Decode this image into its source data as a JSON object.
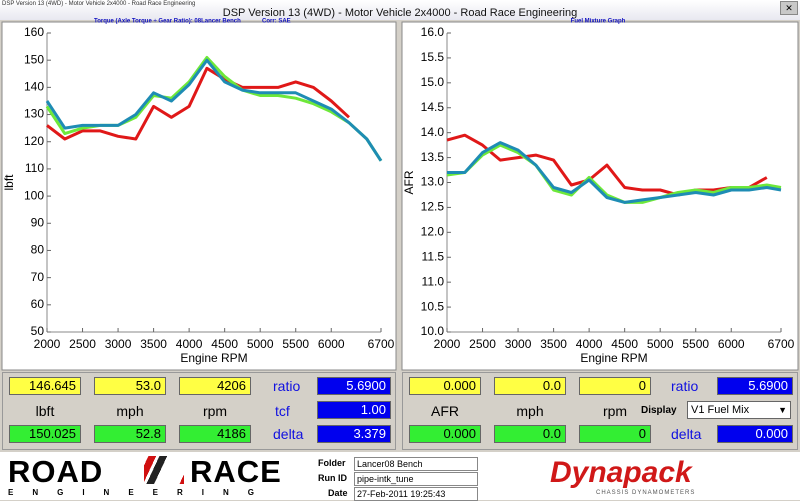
{
  "window": {
    "title_small": "DSP Version 13 (4WD) - Motor Vehicle 2x4000 - Road Race Engineering",
    "title": "DSP Version 13 (4WD) - Motor Vehicle 2x4000 - Road Race Engineering"
  },
  "chart_data": [
    {
      "type": "line",
      "title": "Torque (Axle Torque ÷ Gear Ratio): 08Lancer Bench",
      "annotation": "Corr: SAE",
      "xlabel": "Engine RPM",
      "ylabel": "lbft",
      "x": [
        2000,
        2250,
        2500,
        2750,
        3000,
        3250,
        3500,
        3750,
        4000,
        4250,
        4500,
        4750,
        5000,
        5250,
        5500,
        5750,
        6000,
        6250,
        6500,
        6700
      ],
      "series": [
        {
          "color": "#e01818",
          "values": [
            126,
            121,
            124,
            124,
            122,
            121,
            133,
            129,
            133,
            147,
            143,
            140,
            140,
            140,
            142,
            140,
            135,
            129,
            null,
            null
          ]
        },
        {
          "color": "#6ee83a",
          "values": [
            133,
            123,
            125,
            126,
            126,
            129,
            137,
            136,
            142,
            151,
            144,
            139,
            137,
            137,
            136,
            134,
            131,
            127,
            121,
            113
          ]
        },
        {
          "color": "#1e8cb4",
          "values": [
            135,
            125,
            126,
            126,
            126,
            130,
            138,
            135,
            141,
            150,
            142,
            139,
            138,
            138,
            138,
            135,
            132,
            127,
            121,
            113
          ]
        }
      ],
      "xlim": [
        2000,
        6700
      ],
      "xticks": [
        2000,
        2500,
        3000,
        3500,
        4000,
        4500,
        5000,
        5500,
        6000,
        6700
      ],
      "ylim": [
        50,
        160
      ],
      "yticks": [
        50,
        60,
        70,
        80,
        90,
        100,
        110,
        120,
        130,
        140,
        150,
        160
      ],
      "grid": false
    },
    {
      "type": "line",
      "title": "Fuel Mixture Graph",
      "xlabel": "Engine RPM",
      "ylabel": "AFR",
      "x": [
        2000,
        2250,
        2500,
        2750,
        3000,
        3250,
        3500,
        3750,
        4000,
        4250,
        4500,
        4750,
        5000,
        5250,
        5500,
        5750,
        6000,
        6250,
        6500,
        6700
      ],
      "series": [
        {
          "color": "#e01818",
          "values": [
            13.85,
            13.95,
            13.75,
            13.45,
            13.5,
            13.55,
            13.45,
            12.95,
            13.05,
            13.35,
            12.9,
            12.85,
            12.85,
            12.75,
            12.85,
            12.85,
            12.9,
            12.9,
            13.1,
            null
          ]
        },
        {
          "color": "#6ee83a",
          "values": [
            13.15,
            13.2,
            13.55,
            13.75,
            13.6,
            13.35,
            12.85,
            12.75,
            13.1,
            12.75,
            12.6,
            12.6,
            12.7,
            12.8,
            12.85,
            12.8,
            12.9,
            12.9,
            12.95,
            12.9
          ]
        },
        {
          "color": "#1e8cb4",
          "values": [
            13.2,
            13.2,
            13.6,
            13.8,
            13.65,
            13.35,
            12.9,
            12.8,
            13.05,
            12.7,
            12.6,
            12.65,
            12.7,
            12.75,
            12.8,
            12.75,
            12.85,
            12.85,
            12.9,
            12.85
          ]
        }
      ],
      "xlim": [
        2000,
        6700
      ],
      "xticks": [
        2000,
        2500,
        3000,
        3500,
        4000,
        4500,
        5000,
        5500,
        6000,
        6700
      ],
      "ylim": [
        10,
        16
      ],
      "yticks": [
        {
          "value": 10,
          "label": "10.0"
        },
        {
          "value": 10.5,
          "label": "10.5"
        },
        {
          "value": 11,
          "label": "11.0"
        },
        {
          "value": 11.5,
          "label": "11.5"
        },
        {
          "value": 12,
          "label": "12.0"
        },
        {
          "value": 12.5,
          "label": "12.5"
        },
        {
          "value": 13,
          "label": "13.0"
        },
        {
          "value": 13.5,
          "label": "13.5"
        },
        {
          "value": 14,
          "label": "14.0"
        },
        {
          "value": 14.5,
          "label": "14.5"
        },
        {
          "value": 15,
          "label": "15.0"
        },
        {
          "value": 15.5,
          "label": "15.5"
        },
        {
          "value": 16,
          "label": "16.0"
        }
      ],
      "grid": false
    }
  ],
  "readouts": [
    {
      "top": [
        "146.645",
        "53.0",
        "4206"
      ],
      "units": [
        "lbft",
        "mph",
        "rpm"
      ],
      "bottom": [
        "150.025",
        "52.8",
        "4186"
      ],
      "ratio_label": "ratio",
      "ratio": "5.6900",
      "mid_label": "tcf",
      "mid_value": "1.00",
      "delta_label": "delta",
      "delta": "3.379"
    },
    {
      "top": [
        "0.000",
        "0.0",
        "0"
      ],
      "units": [
        "AFR",
        "mph",
        "rpm"
      ],
      "bottom": [
        "0.000",
        "0.0",
        "0"
      ],
      "ratio_label": "ratio",
      "ratio": "5.6900",
      "mid_label": "Display",
      "mid_value": "V1 Fuel Mix",
      "delta_label": "delta",
      "delta": "0.000"
    }
  ],
  "footer": {
    "logo_left": "ROAD",
    "logo_right": "RACE",
    "logo_sub": "ENGINEERING",
    "folder_label": "Folder",
    "folder": "Lancer08 Bench",
    "run_label": "Run ID",
    "run": "pipe-intk_tune",
    "date_label": "Date",
    "date": "27-Feb-2011 19:25:43",
    "brand": "Dynapack",
    "brand_sub": "CHASSIS DYNAMOMETERS"
  }
}
